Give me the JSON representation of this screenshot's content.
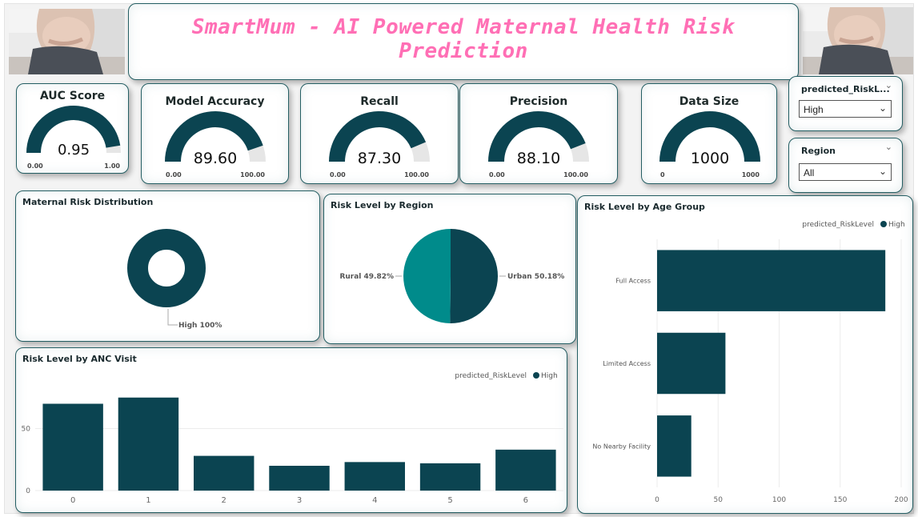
{
  "header": {
    "title": "SmartMum - AI Powered Maternal Health Risk Prediction"
  },
  "colors": {
    "primary": "#0b4451",
    "teal": "#008b8b",
    "title_pink": "#ff6fb5",
    "gauge_bg": "#e6e6e6"
  },
  "kpis": [
    {
      "title": "AUC Score",
      "value": 0.95,
      "display": "0.95",
      "min": "0.00",
      "max": "1.00",
      "min_num": 0,
      "max_num": 1
    },
    {
      "title": "Model Accuracy",
      "value": 89.6,
      "display": "89.60",
      "min": "0.00",
      "max": "100.00",
      "min_num": 0,
      "max_num": 100
    },
    {
      "title": "Recall",
      "value": 87.3,
      "display": "87.30",
      "min": "0.00",
      "max": "100.00",
      "min_num": 0,
      "max_num": 100
    },
    {
      "title": "Precision",
      "value": 88.1,
      "display": "88.10",
      "min": "0.00",
      "max": "100.00",
      "min_num": 0,
      "max_num": 100
    },
    {
      "title": "Data Size",
      "value": 1000,
      "display": "1000",
      "min": "0",
      "max": "1000",
      "min_num": 0,
      "max_num": 1000
    }
  ],
  "slicers": {
    "risk": {
      "label": "predicted_RiskL...",
      "value": "High"
    },
    "region": {
      "label": "Region",
      "value": "All"
    }
  },
  "chart_data": [
    {
      "type": "pie",
      "title": "Maternal Risk Distribution",
      "donut": true,
      "slices": [
        {
          "label": "High",
          "value": 100,
          "display": "High 100%"
        }
      ]
    },
    {
      "type": "pie",
      "title": "Risk Level by Region",
      "slices": [
        {
          "label": "Urban",
          "value": 50.18,
          "display": "Urban 50.18%"
        },
        {
          "label": "Rural",
          "value": 49.82,
          "display": "Rural 49.82%"
        }
      ]
    },
    {
      "type": "bar",
      "orientation": "horizontal",
      "title": "Risk Level by Age Group",
      "legend_title": "predicted_RiskLevel",
      "legend": "top-right",
      "categories": [
        "Full Access",
        "Limited Access",
        "No Nearby Facility"
      ],
      "series": [
        {
          "name": "High",
          "values": [
            187,
            56,
            28
          ]
        }
      ],
      "xlim": [
        0,
        200
      ],
      "xticks": [
        0,
        50,
        100,
        150,
        200
      ],
      "grid": true
    },
    {
      "type": "bar",
      "title": "Risk Level by ANC Visit",
      "legend_title": "predicted_RiskLevel",
      "legend": "top-right",
      "categories": [
        "0",
        "1",
        "2",
        "3",
        "4",
        "5",
        "6"
      ],
      "series": [
        {
          "name": "High",
          "values": [
            70,
            75,
            28,
            20,
            23,
            22,
            33
          ]
        }
      ],
      "ylim": [
        0,
        100
      ],
      "yticks": [
        0,
        50
      ],
      "grid": true
    }
  ]
}
